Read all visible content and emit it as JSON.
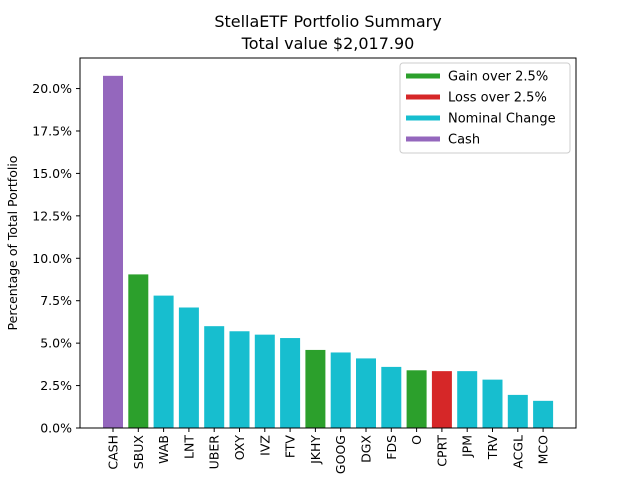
{
  "chart_data": {
    "type": "bar",
    "title": "StellaETF Portfolio Summary",
    "subtitle": "Total value $2,017.90",
    "xlabel": "",
    "ylabel": "Percentage of Total Portfolio",
    "ylim": [
      0,
      21.8
    ],
    "yticks": [
      0,
      2.5,
      5.0,
      7.5,
      10.0,
      12.5,
      15.0,
      17.5,
      20.0
    ],
    "ytick_labels": [
      "0.0%",
      "2.5%",
      "5.0%",
      "7.5%",
      "10.0%",
      "12.5%",
      "15.0%",
      "17.5%",
      "20.0%"
    ],
    "grid": false,
    "legend_position": "top-right",
    "categories": [
      "CASH",
      "SBUX",
      "WAB",
      "LNT",
      "UBER",
      "OXY",
      "IVZ",
      "FTV",
      "JKHY",
      "GOOG",
      "DGX",
      "FDS",
      "O",
      "CPRT",
      "JPM",
      "TRV",
      "ACGL",
      "MCO"
    ],
    "values": [
      20.75,
      9.05,
      7.8,
      7.1,
      6.0,
      5.7,
      5.5,
      5.3,
      4.6,
      4.45,
      4.1,
      3.6,
      3.4,
      3.35,
      3.35,
      2.85,
      1.95,
      1.6
    ],
    "bar_groups": [
      "cash",
      "gain",
      "nominal",
      "nominal",
      "nominal",
      "nominal",
      "nominal",
      "nominal",
      "gain",
      "nominal",
      "nominal",
      "nominal",
      "gain",
      "loss",
      "nominal",
      "nominal",
      "nominal",
      "nominal"
    ],
    "legend": [
      {
        "key": "gain",
        "label": "Gain over 2.5%",
        "color": "#2ca02c"
      },
      {
        "key": "loss",
        "label": "Loss over 2.5%",
        "color": "#d62728"
      },
      {
        "key": "nominal",
        "label": "Nominal Change",
        "color": "#17becf"
      },
      {
        "key": "cash",
        "label": "Cash",
        "color": "#9467bd"
      }
    ]
  }
}
